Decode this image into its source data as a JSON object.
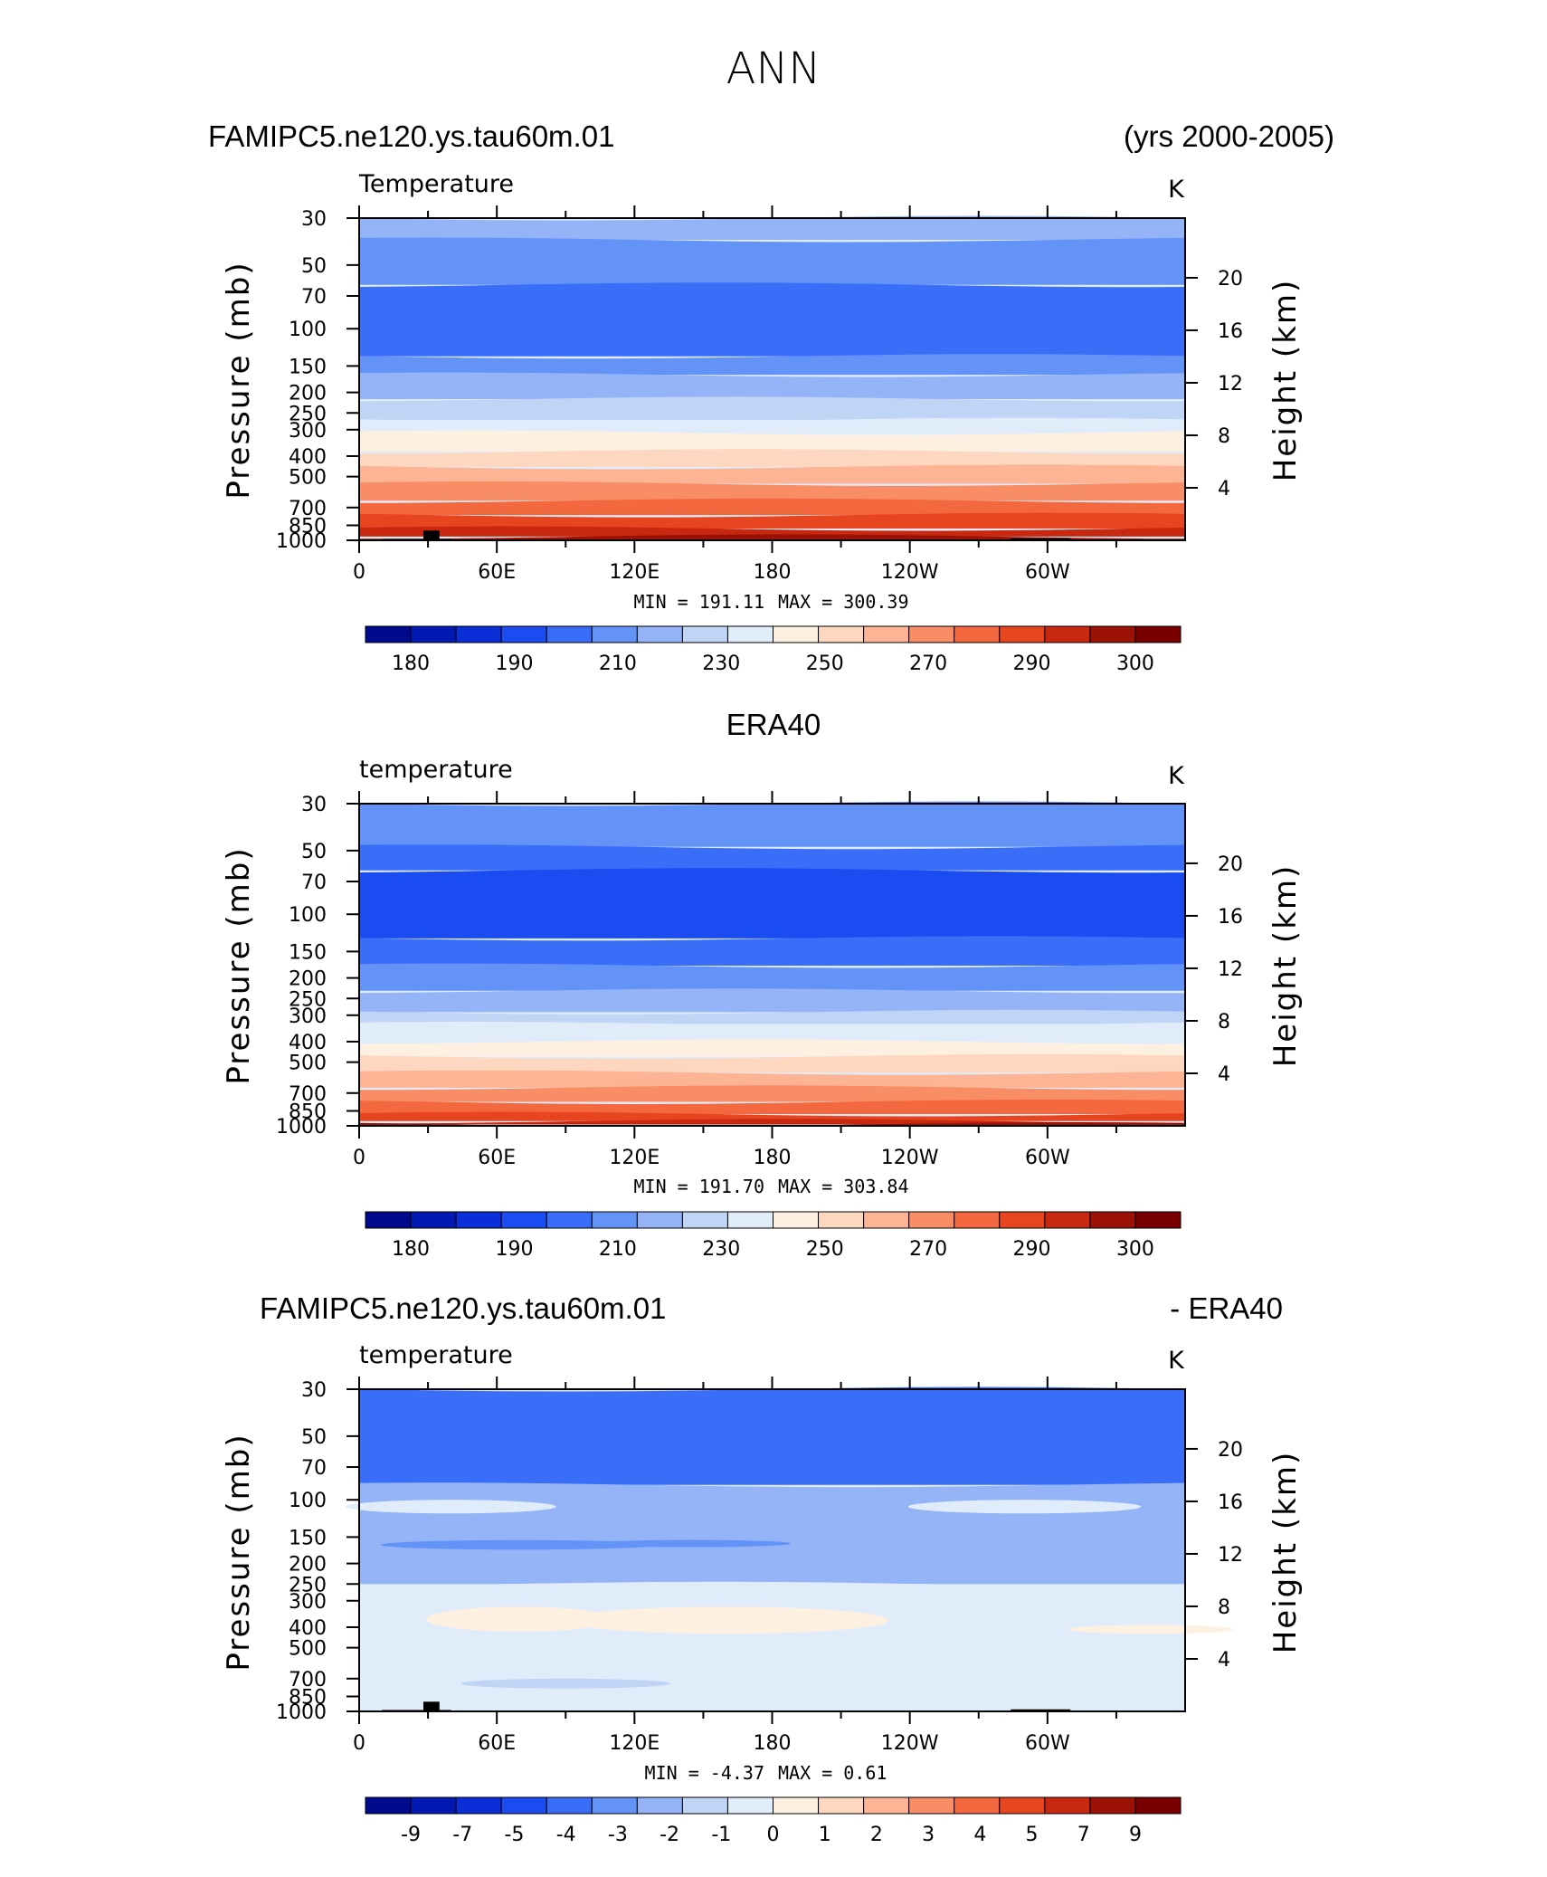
{
  "page_title": "ANN",
  "colors": {
    "temperature_scale": [
      "#000a8c",
      "#0319b4",
      "#0a2ed8",
      "#1a4cf2",
      "#3b6ef8",
      "#6493f8",
      "#94b4f7",
      "#c0d4f6",
      "#e1ecfb",
      "#fef0e0",
      "#fed7c0",
      "#fcb494",
      "#f88d66",
      "#f4683f",
      "#e74420",
      "#c82810",
      "#9c1206",
      "#7a0000"
    ],
    "difference_scale": [
      "#000a8c",
      "#0319b4",
      "#0a2ed8",
      "#1a4cf2",
      "#3b6ef8",
      "#6493f8",
      "#94b4f7",
      "#c0d4f6",
      "#e1ecfb",
      "#fef0e0",
      "#fed7c0",
      "#fcb494",
      "#f88d66",
      "#f4683f",
      "#e74420",
      "#c82810",
      "#9c1206",
      "#7a0000"
    ],
    "topography": "#000000"
  },
  "chart_data": [
    {
      "type": "heatmap",
      "header_left": "FAMIPC5.ne120.ys.tau60m.01",
      "header_right": "(yrs 2000-2005)",
      "title": "Temperature",
      "units": "K",
      "xlabel": "",
      "ylabel": "Pressure (mb)",
      "ylabel_right": "Height (km)",
      "x_ticks": [
        "0",
        "60E",
        "120E",
        "180",
        "120W",
        "60W"
      ],
      "y_ticks": [
        "30",
        "50",
        "70",
        "100",
        "150",
        "200",
        "250",
        "300",
        "400",
        "500",
        "700",
        "850",
        "1000"
      ],
      "y_right_ticks": [
        "20",
        "16",
        "12",
        "8",
        "4"
      ],
      "pressure_range": [
        30,
        1000
      ],
      "min_label": "MIN =  191.11",
      "max_label": "MAX =  300.39",
      "min": 191.11,
      "max": 300.39,
      "colorbar_labels": [
        "180",
        "190",
        "210",
        "230",
        "250",
        "270",
        "290",
        "300"
      ],
      "bands": [
        {
          "p_top": 30,
          "p_bot": 38,
          "level": 6
        },
        {
          "p_top": 38,
          "p_bot": 62,
          "level": 5
        },
        {
          "p_top": 62,
          "p_bot": 135,
          "level": 4
        },
        {
          "p_top": 135,
          "p_bot": 165,
          "level": 5
        },
        {
          "p_top": 165,
          "p_bot": 215,
          "level": 6
        },
        {
          "p_top": 215,
          "p_bot": 270,
          "level": 7
        },
        {
          "p_top": 270,
          "p_bot": 310,
          "level": 8
        },
        {
          "p_top": 310,
          "p_bot": 380,
          "level": 9
        },
        {
          "p_top": 380,
          "p_bot": 450,
          "level": 10
        },
        {
          "p_top": 450,
          "p_bot": 540,
          "level": 11
        },
        {
          "p_top": 540,
          "p_bot": 650,
          "level": 12
        },
        {
          "p_top": 650,
          "p_bot": 760,
          "level": 13
        },
        {
          "p_top": 760,
          "p_bot": 880,
          "level": 14
        },
        {
          "p_top": 880,
          "p_bot": 960,
          "level": 15
        },
        {
          "p_top": 960,
          "p_bot": 1000,
          "level": 16
        }
      ],
      "topography": true
    },
    {
      "type": "heatmap",
      "header_left": "ERA40",
      "header_right": "",
      "title": "temperature",
      "units": "K",
      "xlabel": "",
      "ylabel": "Pressure (mb)",
      "ylabel_right": "Height (km)",
      "x_ticks": [
        "0",
        "60E",
        "120E",
        "180",
        "120W",
        "60W"
      ],
      "y_ticks": [
        "30",
        "50",
        "70",
        "100",
        "150",
        "200",
        "250",
        "300",
        "400",
        "500",
        "700",
        "850",
        "1000"
      ],
      "y_right_ticks": [
        "20",
        "16",
        "12",
        "8",
        "4"
      ],
      "pressure_range": [
        30,
        1000
      ],
      "min_label": "MIN =  191.70",
      "max_label": "MAX =  303.84",
      "min": 191.7,
      "max": 303.84,
      "colorbar_labels": [
        "180",
        "190",
        "210",
        "230",
        "250",
        "270",
        "290",
        "300"
      ],
      "bands": [
        {
          "p_top": 30,
          "p_bot": 48,
          "level": 5
        },
        {
          "p_top": 48,
          "p_bot": 62,
          "level": 4
        },
        {
          "p_top": 62,
          "p_bot": 130,
          "level": 3
        },
        {
          "p_top": 130,
          "p_bot": 175,
          "level": 4
        },
        {
          "p_top": 175,
          "p_bot": 230,
          "level": 5
        },
        {
          "p_top": 230,
          "p_bot": 290,
          "level": 6
        },
        {
          "p_top": 290,
          "p_bot": 330,
          "level": 7
        },
        {
          "p_top": 330,
          "p_bot": 400,
          "level": 8
        },
        {
          "p_top": 400,
          "p_bot": 470,
          "level": 9
        },
        {
          "p_top": 470,
          "p_bot": 560,
          "level": 10
        },
        {
          "p_top": 560,
          "p_bot": 660,
          "level": 11
        },
        {
          "p_top": 660,
          "p_bot": 770,
          "level": 12
        },
        {
          "p_top": 770,
          "p_bot": 880,
          "level": 13
        },
        {
          "p_top": 880,
          "p_bot": 950,
          "level": 14
        },
        {
          "p_top": 950,
          "p_bot": 985,
          "level": 15
        },
        {
          "p_top": 985,
          "p_bot": 1000,
          "level": 16
        }
      ],
      "topography": false
    },
    {
      "type": "heatmap",
      "header_left": "FAMIPC5.ne120.ys.tau60m.01",
      "header_right": "- ERA40",
      "title": "temperature",
      "units": "K",
      "xlabel": "",
      "ylabel": "Pressure (mb)",
      "ylabel_right": "Height (km)",
      "x_ticks": [
        "0",
        "60E",
        "120E",
        "180",
        "120W",
        "60W"
      ],
      "y_ticks": [
        "30",
        "50",
        "70",
        "100",
        "150",
        "200",
        "250",
        "300",
        "400",
        "500",
        "700",
        "850",
        "1000"
      ],
      "y_right_ticks": [
        "20",
        "16",
        "12",
        "8",
        "4"
      ],
      "pressure_range": [
        30,
        1000
      ],
      "min_label": "MIN =   -4.37",
      "max_label": "MAX =    0.61",
      "min": -4.37,
      "max": 0.61,
      "colorbar_labels": [
        "-9",
        "-7",
        "-5",
        "-4",
        "-3",
        "-2",
        "-1",
        "0",
        "1",
        "2",
        "3",
        "4",
        "5",
        "7",
        "9"
      ],
      "bands": [
        {
          "p_top": 30,
          "p_bot": 85,
          "level": 4
        },
        {
          "p_top": 85,
          "p_bot": 250,
          "level": 6
        },
        {
          "p_top": 250,
          "p_bot": 1000,
          "level": 8
        }
      ],
      "topography": true
    }
  ]
}
